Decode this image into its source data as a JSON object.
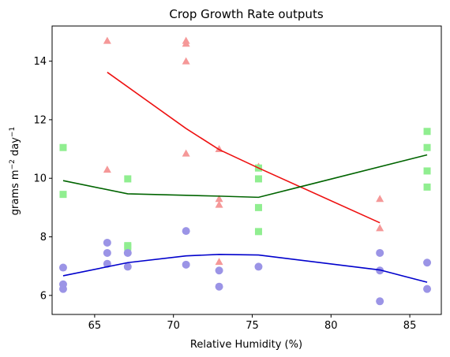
{
  "chart_data": {
    "type": "scatter",
    "title": "Crop Growth Rate outputs",
    "xlabel": "Relative Humidity (%)",
    "ylabel_main": "grams m",
    "ylabel_sup1": "−2",
    "ylabel_mid": " day",
    "ylabel_sup2": "−1",
    "xlim": [
      62.3,
      87.0
    ],
    "ylim": [
      5.35,
      15.2
    ],
    "xticks": [
      65,
      70,
      75,
      80,
      85
    ],
    "yticks": [
      6,
      8,
      10,
      12,
      14
    ],
    "grid": false,
    "series": [
      {
        "marker": "triangle",
        "color": "#f59898",
        "line_color": "#ee1111",
        "points": [
          [
            65.8,
            14.7
          ],
          [
            65.8,
            10.3
          ],
          [
            70.8,
            14.7
          ],
          [
            70.8,
            14.6
          ],
          [
            70.8,
            14.0
          ],
          [
            70.8,
            10.85
          ],
          [
            72.9,
            11.0
          ],
          [
            72.9,
            9.3
          ],
          [
            72.9,
            9.1
          ],
          [
            72.9,
            7.15
          ],
          [
            75.4,
            10.4
          ],
          [
            83.1,
            9.3
          ],
          [
            83.1,
            8.3
          ]
        ],
        "trend": [
          [
            65.8,
            13.62
          ],
          [
            70.8,
            11.7
          ],
          [
            72.9,
            10.98
          ],
          [
            75.4,
            10.35
          ],
          [
            83.1,
            8.48
          ]
        ]
      },
      {
        "marker": "square",
        "color": "#90ee90",
        "line_color": "#006400",
        "points": [
          [
            63.0,
            11.05
          ],
          [
            63.0,
            9.45
          ],
          [
            67.1,
            9.98
          ],
          [
            67.1,
            7.7
          ],
          [
            67.1,
            7.65
          ],
          [
            75.4,
            10.35
          ],
          [
            75.4,
            9.98
          ],
          [
            75.4,
            9.0
          ],
          [
            75.4,
            8.18
          ],
          [
            86.1,
            11.6
          ],
          [
            86.1,
            11.05
          ],
          [
            86.1,
            10.25
          ],
          [
            86.1,
            9.7
          ]
        ],
        "trend": [
          [
            63.0,
            9.92
          ],
          [
            67.1,
            9.47
          ],
          [
            72.9,
            9.39
          ],
          [
            75.4,
            9.35
          ],
          [
            86.1,
            10.8
          ]
        ]
      },
      {
        "marker": "circle",
        "color": "#9b94e6",
        "line_color": "#0000cc",
        "points": [
          [
            63.0,
            6.95
          ],
          [
            63.0,
            6.38
          ],
          [
            63.0,
            6.22
          ],
          [
            65.8,
            7.8
          ],
          [
            65.8,
            7.45
          ],
          [
            65.8,
            7.08
          ],
          [
            67.1,
            7.45
          ],
          [
            67.1,
            6.98
          ],
          [
            70.8,
            8.2
          ],
          [
            70.8,
            7.05
          ],
          [
            72.9,
            6.85
          ],
          [
            72.9,
            6.3
          ],
          [
            75.4,
            6.98
          ],
          [
            83.1,
            7.45
          ],
          [
            83.1,
            6.85
          ],
          [
            83.1,
            5.8
          ],
          [
            86.1,
            7.12
          ],
          [
            86.1,
            6.22
          ]
        ],
        "trend": [
          [
            63.0,
            6.67
          ],
          [
            67.1,
            7.12
          ],
          [
            70.8,
            7.35
          ],
          [
            72.9,
            7.4
          ],
          [
            75.4,
            7.38
          ],
          [
            83.1,
            6.87
          ],
          [
            86.1,
            6.45
          ]
        ]
      }
    ]
  }
}
